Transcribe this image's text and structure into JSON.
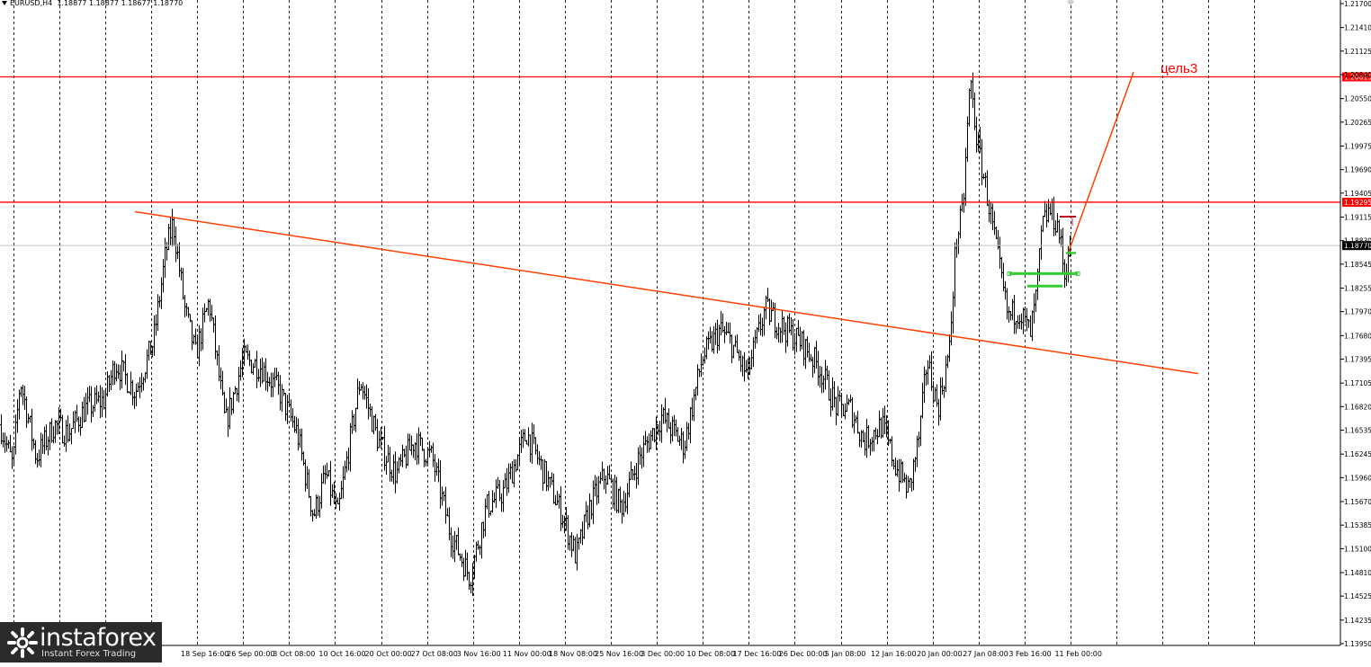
{
  "header": {
    "symbol": "EURUSD,H4",
    "ohlc": "1.18877 1.18877 1.18677 1.18770"
  },
  "watermark": {
    "brand": "instaforex",
    "tagline": "Instant Forex Trading",
    "logo_icon": "instaforex-logo-icon"
  },
  "colors": {
    "background": "#ffffff",
    "bars": "#000000",
    "grid": "#000000",
    "levels": "#ff0000",
    "trendline": "#ff4000",
    "green_levels": "#33cc33",
    "dark_red_mark": "#c00020",
    "price_label_bg": "#ff0000",
    "current_label_bg": "#000000"
  },
  "chart_data": {
    "type": "line",
    "subtype": "ohlc-bars",
    "title": "EURUSD,H4",
    "ylim": [
      1.1395,
      1.217
    ],
    "y_ticks": [
      "1.21700",
      "1.21410",
      "1.21125",
      "1.20840",
      "1.20550",
      "1.20265",
      "1.19975",
      "1.19690",
      "1.19405",
      "1.19115",
      "1.18830",
      "1.18545",
      "1.18255",
      "1.17970",
      "1.17680",
      "1.17395",
      "1.17105",
      "1.16820",
      "1.16535",
      "1.16245",
      "1.15960",
      "1.15670",
      "1.15385",
      "1.15100",
      "1.14810",
      "1.14525",
      "1.14235",
      "1.13950"
    ],
    "x_ticks": [
      "18 Sep 16:00",
      "26 Sep 00:00",
      "3 Oct 08:00",
      "10 Oct 16:00",
      "20 Oct 00:00",
      "27 Oct 08:00",
      "3 Nov 16:00",
      "11 Nov 00:00",
      "18 Nov 08:00",
      "25 Nov 16:00",
      "3 Dec 00:00",
      "10 Dec 08:00",
      "17 Dec 16:00",
      "26 Dec 00:00",
      "5 Jan 08:00",
      "12 Jan 16:00",
      "20 Jan 00:00",
      "27 Jan 08:00",
      "3 Feb 16:00",
      "11 Feb 00:00"
    ],
    "price_series": {
      "name": "EURUSD",
      "anchors": [
        [
          0,
          1.166
        ],
        [
          14,
          1.161
        ],
        [
          22,
          1.1715
        ],
        [
          40,
          1.162
        ],
        [
          60,
          1.166
        ],
        [
          75,
          1.165
        ],
        [
          95,
          1.168
        ],
        [
          115,
          1.169
        ],
        [
          128,
          1.1735
        ],
        [
          150,
          1.17
        ],
        [
          170,
          1.176
        ],
        [
          184,
          1.187
        ],
        [
          192,
          1.1905
        ],
        [
          205,
          1.18
        ],
        [
          217,
          1.1745
        ],
        [
          232,
          1.181
        ],
        [
          250,
          1.166
        ],
        [
          270,
          1.174
        ],
        [
          290,
          1.173
        ],
        [
          310,
          1.17
        ],
        [
          330,
          1.165
        ],
        [
          348,
          1.155
        ],
        [
          362,
          1.16
        ],
        [
          375,
          1.155
        ],
        [
          400,
          1.1715
        ],
        [
          420,
          1.164
        ],
        [
          440,
          1.16
        ],
        [
          460,
          1.164
        ],
        [
          480,
          1.162
        ],
        [
          500,
          1.153
        ],
        [
          522,
          1.1475
        ],
        [
          540,
          1.156
        ],
        [
          560,
          1.158
        ],
        [
          585,
          1.165
        ],
        [
          605,
          1.16
        ],
        [
          625,
          1.155
        ],
        [
          640,
          1.15
        ],
        [
          655,
          1.156
        ],
        [
          672,
          1.16
        ],
        [
          690,
          1.156
        ],
        [
          710,
          1.162
        ],
        [
          735,
          1.167
        ],
        [
          760,
          1.1635
        ],
        [
          780,
          1.174
        ],
        [
          800,
          1.1775
        ],
        [
          812,
          1.176
        ],
        [
          830,
          1.172
        ],
        [
          850,
          1.18
        ],
        [
          868,
          1.178
        ],
        [
          890,
          1.176
        ],
        [
          910,
          1.173
        ],
        [
          930,
          1.168
        ],
        [
          945,
          1.168
        ],
        [
          960,
          1.164
        ],
        [
          980,
          1.166
        ],
        [
          995,
          1.161
        ],
        [
          1010,
          1.158
        ],
        [
          1022,
          1.165
        ],
        [
          1030,
          1.174
        ],
        [
          1042,
          1.168
        ],
        [
          1055,
          1.175
        ],
        [
          1062,
          1.188
        ],
        [
          1070,
          1.192
        ],
        [
          1078,
          1.208
        ],
        [
          1086,
          1.2
        ],
        [
          1095,
          1.195
        ],
        [
          1103,
          1.19
        ],
        [
          1112,
          1.184
        ],
        [
          1120,
          1.179
        ],
        [
          1132,
          1.18
        ],
        [
          1145,
          1.177
        ],
        [
          1152,
          1.182
        ],
        [
          1158,
          1.19
        ],
        [
          1166,
          1.192
        ],
        [
          1176,
          1.19
        ],
        [
          1183,
          1.184
        ],
        [
          1188,
          1.1877
        ]
      ],
      "current_price": 1.1877
    },
    "horizontal_levels": [
      {
        "name": "resistance-upper",
        "value": 1.20813,
        "label": "1.20813"
      },
      {
        "name": "resistance-lower",
        "value": 1.19295,
        "label": "1.19295"
      }
    ],
    "current_price_label": "1.18770",
    "green_levels": [
      {
        "value": 1.1843,
        "x_start": "3 Feb 16:00",
        "x_end": "11 Feb 00:00"
      },
      {
        "value": 1.1828,
        "x_start": "3 Feb 16:00",
        "x_end": "11 Feb 00:00"
      }
    ],
    "dark_red_level": {
      "value": 1.1912
    },
    "short_green_level": {
      "value": 1.1868
    },
    "trendline": {
      "from": {
        "x": "mid Sep",
        "y": 1.1918
      },
      "to": {
        "x": "mid Feb",
        "y": 1.1722
      }
    },
    "target_ray": {
      "from": 1.187,
      "to": 1.2087
    },
    "annotations": [
      {
        "text": "цель3",
        "color": "#ff0000"
      }
    ],
    "grid": "vertical-dashed"
  }
}
